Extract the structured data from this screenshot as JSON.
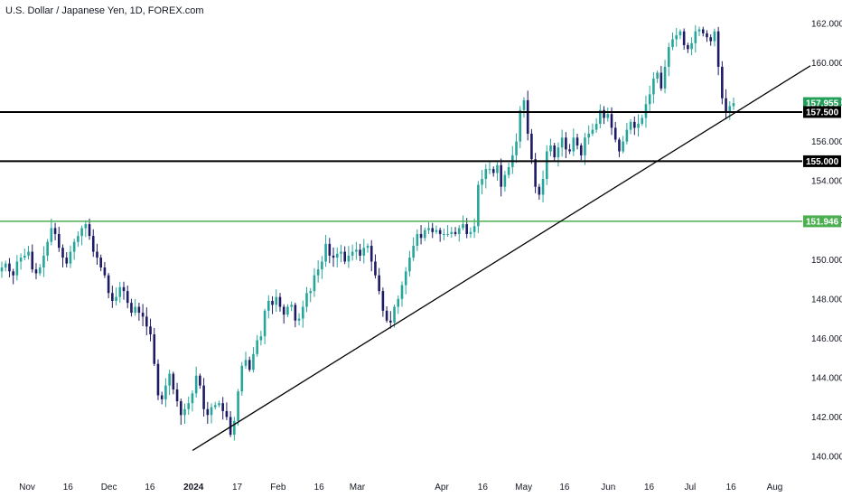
{
  "header": {
    "title": "U.S. Dollar / Japanese Yen, 1D, FOREX.com"
  },
  "colors": {
    "up": "#26a69a",
    "down": "#1e1a64",
    "black": "#000000",
    "green": "#4caf50",
    "grid": "#e0e3eb",
    "text": "#131722"
  },
  "chart_data": {
    "type": "candlestick",
    "title": "U.S. Dollar / Japanese Yen, 1D, FOREX.com",
    "y_axis": {
      "position": "right",
      "ylim": [
        139.5,
        163.1
      ],
      "ticks": [
        140,
        142,
        144,
        146,
        148,
        150,
        152,
        154,
        156,
        158,
        160,
        162
      ],
      "tick_labels": [
        "140.000",
        "142.000",
        "144.000",
        "146.000",
        "148.000",
        "150.000",
        "152.000",
        "154.000",
        "156.000",
        "158.000",
        "160.000",
        "162.000"
      ]
    },
    "x_axis": {
      "labels": [
        "Nov",
        "16",
        "Dec",
        "16",
        "2024",
        "17",
        "Feb",
        "16",
        "Mar",
        "Apr",
        "16",
        "May",
        "16",
        "Jun",
        "16",
        "Jul",
        "16",
        "Aug"
      ],
      "label_positions_days": [
        0,
        15,
        30,
        45,
        61,
        77,
        92,
        107,
        121,
        152,
        167,
        182,
        197,
        213,
        228,
        243,
        258,
        274
      ],
      "bold_labels": [
        "2024"
      ]
    },
    "horizontal_lines": [
      {
        "value": 157.5,
        "label": "157.500",
        "color": "#000000",
        "tag": "black"
      },
      {
        "value": 155.0,
        "label": "155.000",
        "color": "#000000",
        "tag": "black"
      },
      {
        "value": 151.946,
        "label": "151.946",
        "color": "#4caf50",
        "tag": "green"
      }
    ],
    "last_price": {
      "value": 157.955,
      "label": "157.955"
    },
    "trendline": {
      "start": {
        "day": 60,
        "price": 140.3
      },
      "end_price_at_right_edge": 159.85
    },
    "candles_close_series": [
      149.6,
      149.8,
      149.4,
      149.2,
      149.9,
      150.1,
      150.2,
      150.4,
      149.5,
      149.3,
      149.6,
      150.2,
      150.9,
      151.6,
      151.3,
      150.6,
      150.1,
      149.8,
      150.4,
      150.9,
      151.2,
      151.6,
      151.8,
      151.2,
      150.4,
      150.1,
      149.6,
      149.2,
      148.3,
      147.9,
      148.1,
      148.6,
      148.4,
      147.8,
      147.3,
      147.6,
      147.3,
      147.1,
      146.6,
      146.2,
      144.7,
      143.1,
      142.9,
      143.6,
      144.2,
      143.4,
      142.8,
      142.1,
      142.4,
      142.7,
      143.2,
      144.1,
      143.6,
      142.4,
      142.1,
      142.5,
      142.6,
      142.7,
      142.3,
      142.0,
      141.1,
      141.8,
      143.3,
      144.6,
      144.9,
      144.4,
      145.2,
      145.9,
      146.1,
      147.4,
      147.9,
      147.7,
      148.1,
      147.6,
      147.2,
      147.6,
      147.7,
      146.9,
      147.0,
      147.6,
      148.3,
      148.4,
      149.2,
      149.5,
      149.9,
      150.8,
      150.2,
      150.1,
      150.3,
      150.4,
      149.9,
      150.2,
      150.4,
      150.5,
      150.2,
      150.6,
      150.7,
      149.9,
      149.2,
      148.4,
      147.4,
      146.9,
      146.8,
      147.6,
      148.0,
      148.7,
      149.4,
      150.1,
      150.7,
      151.3,
      151.1,
      151.5,
      151.6,
      151.4,
      151.5,
      151.3,
      151.3,
      151.3,
      151.4,
      151.3,
      151.6,
      151.8,
      151.3,
      151.4,
      151.7,
      153.8,
      154.1,
      154.6,
      154.6,
      154.4,
      154.8,
      153.7,
      154.3,
      154.7,
      155.3,
      156.0,
      157.6,
      158.1,
      156.4,
      155.1,
      153.7,
      153.3,
      154.1,
      155.5,
      155.8,
      155.2,
      155.7,
      156.2,
      155.6,
      155.5,
      156.2,
      155.8,
      155.3,
      156.2,
      156.4,
      156.6,
      156.9,
      157.6,
      157.2,
      157.4,
      156.7,
      156.1,
      155.5,
      156.0,
      156.6,
      157.0,
      156.7,
      156.9,
      157.2,
      157.9,
      158.4,
      159.2,
      159.5,
      158.7,
      159.8,
      160.8,
      161.2,
      161.4,
      161.6,
      160.9,
      160.7,
      161.0,
      161.6,
      161.7,
      161.5,
      161.3,
      161.1,
      161.6,
      159.8,
      158.2,
      157.5,
      157.8,
      157.955
    ]
  }
}
